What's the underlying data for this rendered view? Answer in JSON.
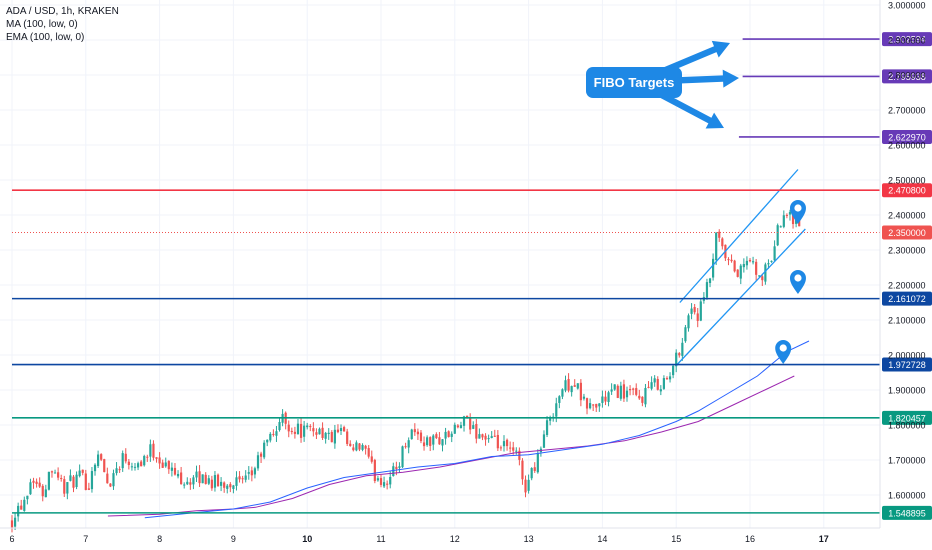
{
  "header": {
    "title": "ADA / USD, 1h, KRAKEN",
    "indicators": [
      "MA (100, low, 0)",
      "EMA (100, low, 0)"
    ]
  },
  "annotation": {
    "label": "FIBO Targets"
  },
  "chart_data": {
    "type": "candlestick",
    "ylim": [
      1.53,
      3.0
    ],
    "y_ticks": [
      "3.000000",
      "2.900000",
      "2.800000",
      "2.700000",
      "2.600000",
      "2.500000",
      "2.400000",
      "2.300000",
      "2.200000",
      "2.100000",
      "2.000000",
      "1.900000",
      "1.800000",
      "1.700000",
      "1.600000"
    ],
    "x_ticks": [
      "6",
      "7",
      "8",
      "9",
      "10",
      "11",
      "12",
      "13",
      "14",
      "15",
      "16",
      "17"
    ],
    "x_range_days": [
      6,
      17.8
    ],
    "levels": [
      {
        "name": "fibo-target-3",
        "value": 2.902594,
        "label": "2.902594",
        "color": "#673ab7",
        "start_day": 15.9
      },
      {
        "name": "fibo-target-2",
        "value": 2.795938,
        "label": "2.795938",
        "color": "#673ab7",
        "start_day": 15.9
      },
      {
        "name": "fibo-target-1",
        "value": 2.62297,
        "label": "2.622970",
        "color": "#673ab7",
        "start_day": 15.85
      },
      {
        "name": "resistance",
        "value": 2.4708,
        "label": "2.470800",
        "color": "#f23645",
        "start_day": 6
      },
      {
        "name": "last-price",
        "value": 2.35,
        "label": "2.350000",
        "color": "#ef5350",
        "dotted": true,
        "start_day": 6
      },
      {
        "name": "support-1",
        "value": 2.161072,
        "label": "2.161072",
        "color": "#0d47a1",
        "start_day": 6
      },
      {
        "name": "support-2",
        "value": 1.972728,
        "label": "1.972728",
        "color": "#0d47a1",
        "start_day": 6
      },
      {
        "name": "support-3",
        "value": 1.820457,
        "label": "1.820457",
        "color": "#089981",
        "start_day": 6
      },
      {
        "name": "support-4",
        "value": 1.548895,
        "label": "1.548895",
        "color": "#089981",
        "start_day": 6
      }
    ],
    "path_anchors": [
      [
        6.0,
        1.53
      ],
      [
        6.05,
        1.56
      ],
      [
        6.15,
        1.58
      ],
      [
        6.28,
        1.66
      ],
      [
        6.4,
        1.6
      ],
      [
        6.55,
        1.69
      ],
      [
        6.7,
        1.62
      ],
      [
        6.9,
        1.65
      ],
      [
        7.05,
        1.63
      ],
      [
        7.15,
        1.73
      ],
      [
        7.3,
        1.63
      ],
      [
        7.5,
        1.71
      ],
      [
        7.7,
        1.69
      ],
      [
        7.9,
        1.73
      ],
      [
        8.05,
        1.69
      ],
      [
        8.2,
        1.66
      ],
      [
        8.4,
        1.64
      ],
      [
        8.6,
        1.65
      ],
      [
        8.8,
        1.63
      ],
      [
        9.0,
        1.64
      ],
      [
        9.15,
        1.63
      ],
      [
        9.25,
        1.66
      ],
      [
        9.4,
        1.73
      ],
      [
        9.55,
        1.78
      ],
      [
        9.65,
        1.82
      ],
      [
        9.8,
        1.79
      ],
      [
        10.0,
        1.78
      ],
      [
        10.15,
        1.79
      ],
      [
        10.3,
        1.76
      ],
      [
        10.45,
        1.78
      ],
      [
        10.6,
        1.72
      ],
      [
        10.75,
        1.74
      ],
      [
        10.9,
        1.66
      ],
      [
        11.05,
        1.64
      ],
      [
        11.2,
        1.67
      ],
      [
        11.4,
        1.79
      ],
      [
        11.6,
        1.75
      ],
      [
        11.8,
        1.76
      ],
      [
        12.0,
        1.78
      ],
      [
        12.1,
        1.81
      ],
      [
        12.3,
        1.78
      ],
      [
        12.5,
        1.75
      ],
      [
        12.7,
        1.73
      ],
      [
        12.85,
        1.71
      ],
      [
        12.95,
        1.62
      ],
      [
        13.05,
        1.67
      ],
      [
        13.15,
        1.73
      ],
      [
        13.3,
        1.83
      ],
      [
        13.45,
        1.9
      ],
      [
        13.6,
        1.93
      ],
      [
        13.75,
        1.86
      ],
      [
        13.9,
        1.85
      ],
      [
        14.05,
        1.88
      ],
      [
        14.2,
        1.9
      ],
      [
        14.35,
        1.89
      ],
      [
        14.5,
        1.87
      ],
      [
        14.6,
        1.9
      ],
      [
        14.75,
        1.92
      ],
      [
        14.9,
        1.93
      ],
      [
        15.0,
        1.99
      ],
      [
        15.1,
        2.06
      ],
      [
        15.2,
        2.14
      ],
      [
        15.3,
        2.11
      ],
      [
        15.45,
        2.21
      ],
      [
        15.55,
        2.34
      ],
      [
        15.65,
        2.28
      ],
      [
        15.75,
        2.25
      ],
      [
        15.85,
        2.23
      ],
      [
        16.0,
        2.28
      ],
      [
        16.1,
        2.21
      ],
      [
        16.25,
        2.25
      ],
      [
        16.35,
        2.33
      ],
      [
        16.45,
        2.42
      ],
      [
        16.55,
        2.4
      ],
      [
        16.65,
        2.39
      ],
      [
        16.7,
        2.35
      ]
    ],
    "ma_100_low": [
      [
        7.3,
        1.54
      ],
      [
        8.0,
        1.545
      ],
      [
        8.5,
        1.555
      ],
      [
        9.0,
        1.56
      ],
      [
        9.3,
        1.565
      ],
      [
        9.8,
        1.59
      ],
      [
        10.3,
        1.63
      ],
      [
        10.8,
        1.655
      ],
      [
        11.3,
        1.665
      ],
      [
        11.8,
        1.68
      ],
      [
        12.3,
        1.7
      ],
      [
        12.8,
        1.72
      ],
      [
        13.3,
        1.73
      ],
      [
        13.8,
        1.74
      ],
      [
        14.3,
        1.755
      ],
      [
        14.8,
        1.78
      ],
      [
        15.3,
        1.81
      ],
      [
        15.8,
        1.86
      ],
      [
        16.2,
        1.9
      ],
      [
        16.6,
        1.94
      ]
    ],
    "ema_100_low": [
      [
        7.8,
        1.535
      ],
      [
        8.5,
        1.55
      ],
      [
        9.0,
        1.56
      ],
      [
        9.5,
        1.58
      ],
      [
        10.0,
        1.62
      ],
      [
        10.5,
        1.65
      ],
      [
        11.0,
        1.665
      ],
      [
        11.5,
        1.68
      ],
      [
        12.0,
        1.69
      ],
      [
        12.5,
        1.71
      ],
      [
        13.0,
        1.715
      ],
      [
        13.5,
        1.73
      ],
      [
        14.0,
        1.745
      ],
      [
        14.5,
        1.77
      ],
      [
        15.0,
        1.81
      ],
      [
        15.3,
        1.84
      ],
      [
        15.7,
        1.89
      ],
      [
        16.1,
        1.94
      ],
      [
        16.5,
        2.01
      ],
      [
        16.8,
        2.04
      ]
    ],
    "channel_upper": [
      [
        15.05,
        2.15
      ],
      [
        16.65,
        2.53
      ]
    ],
    "channel_lower": [
      [
        15.0,
        1.97
      ],
      [
        16.75,
        2.36
      ]
    ],
    "markers": [
      {
        "name": "marker-upper",
        "day": 16.65,
        "value": 2.4
      },
      {
        "name": "marker-middle",
        "day": 16.65,
        "value": 2.2
      },
      {
        "name": "marker-lower",
        "day": 16.45,
        "value": 2.0
      }
    ],
    "colors": {
      "up": "#26a69a",
      "down": "#ef5350",
      "ma": "#9c27b0",
      "ema": "#2962ff",
      "channel": "#2196f3",
      "callout": "#1e88e5",
      "axis_text": "#131722",
      "grid": "#f0f3fa"
    }
  }
}
